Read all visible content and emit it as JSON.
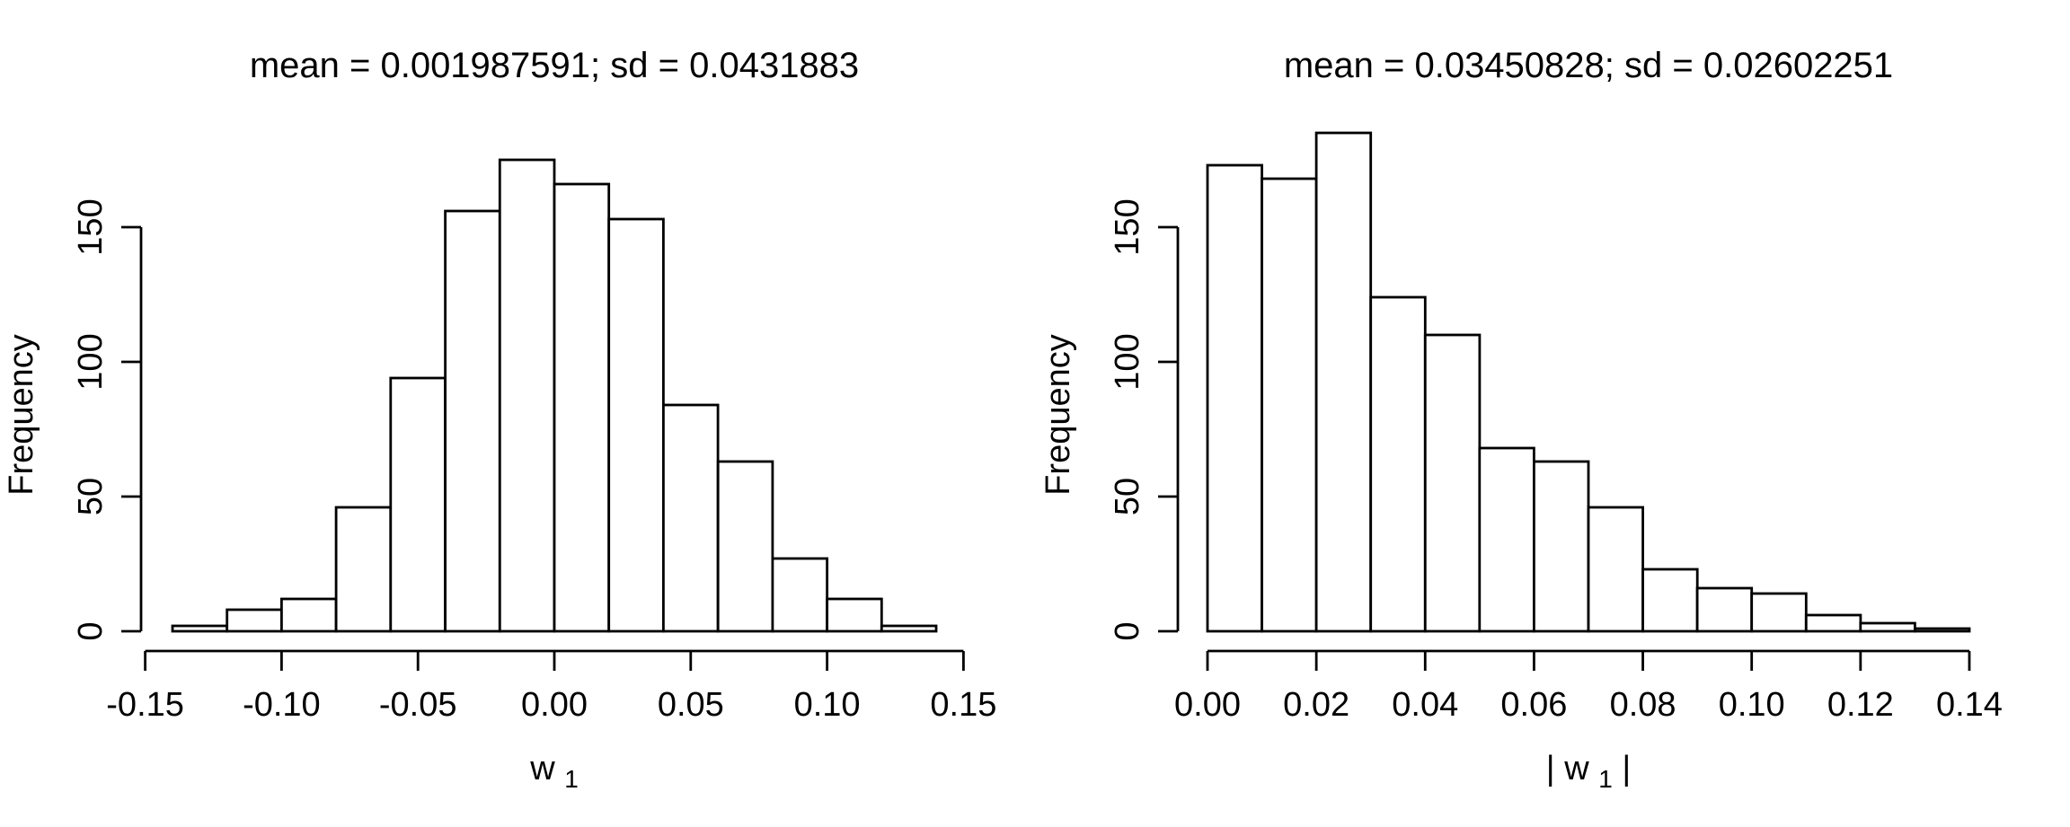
{
  "figure": {
    "background": "#ffffff",
    "line_color": "#000000",
    "text_color": "#000000",
    "bar_fill": "#ffffff"
  },
  "chart_data": [
    {
      "type": "bar",
      "kind": "histogram",
      "title": "mean = 0.001987591; sd = 0.0431883",
      "ylabel": "Frequency",
      "xlabel": {
        "pre": "",
        "base": "w",
        "sub": "1",
        "post": ""
      },
      "bin_start": -0.14,
      "bin_width": 0.02,
      "counts": [
        2,
        8,
        12,
        46,
        94,
        156,
        175,
        166,
        153,
        84,
        63,
        27,
        12,
        2
      ],
      "x_ticks": {
        "values": [
          -0.15,
          -0.1,
          -0.05,
          0.0,
          0.05,
          0.1,
          0.15
        ],
        "labels": [
          "-0.15",
          "-0.10",
          "-0.05",
          "0.00",
          "0.05",
          "0.10",
          "0.15"
        ]
      },
      "y_ticks": {
        "values": [
          0,
          50,
          100,
          150
        ],
        "labels": [
          "0",
          "50",
          "100",
          "150"
        ]
      },
      "xlim": [
        -0.15,
        0.15
      ],
      "ylim": [
        0,
        175
      ],
      "grid": false,
      "legend": false
    },
    {
      "type": "bar",
      "kind": "histogram",
      "title": "mean = 0.03450828; sd = 0.02602251",
      "ylabel": "Frequency",
      "xlabel": {
        "pre": "|",
        "base": "w",
        "sub": "1",
        "post": "|"
      },
      "bin_start": 0.0,
      "bin_width": 0.01,
      "counts": [
        173,
        168,
        185,
        124,
        110,
        68,
        63,
        46,
        23,
        16,
        14,
        6,
        3,
        1
      ],
      "x_ticks": {
        "values": [
          0.0,
          0.02,
          0.04,
          0.06,
          0.08,
          0.1,
          0.12,
          0.14
        ],
        "labels": [
          "0.00",
          "0.02",
          "0.04",
          "0.06",
          "0.08",
          "0.10",
          "0.12",
          "0.14"
        ]
      },
      "y_ticks": {
        "values": [
          0,
          50,
          100,
          150
        ],
        "labels": [
          "0",
          "50",
          "100",
          "150"
        ]
      },
      "xlim": [
        0.0,
        0.14
      ],
      "ylim": [
        0,
        185
      ],
      "grid": false,
      "legend": false
    }
  ]
}
